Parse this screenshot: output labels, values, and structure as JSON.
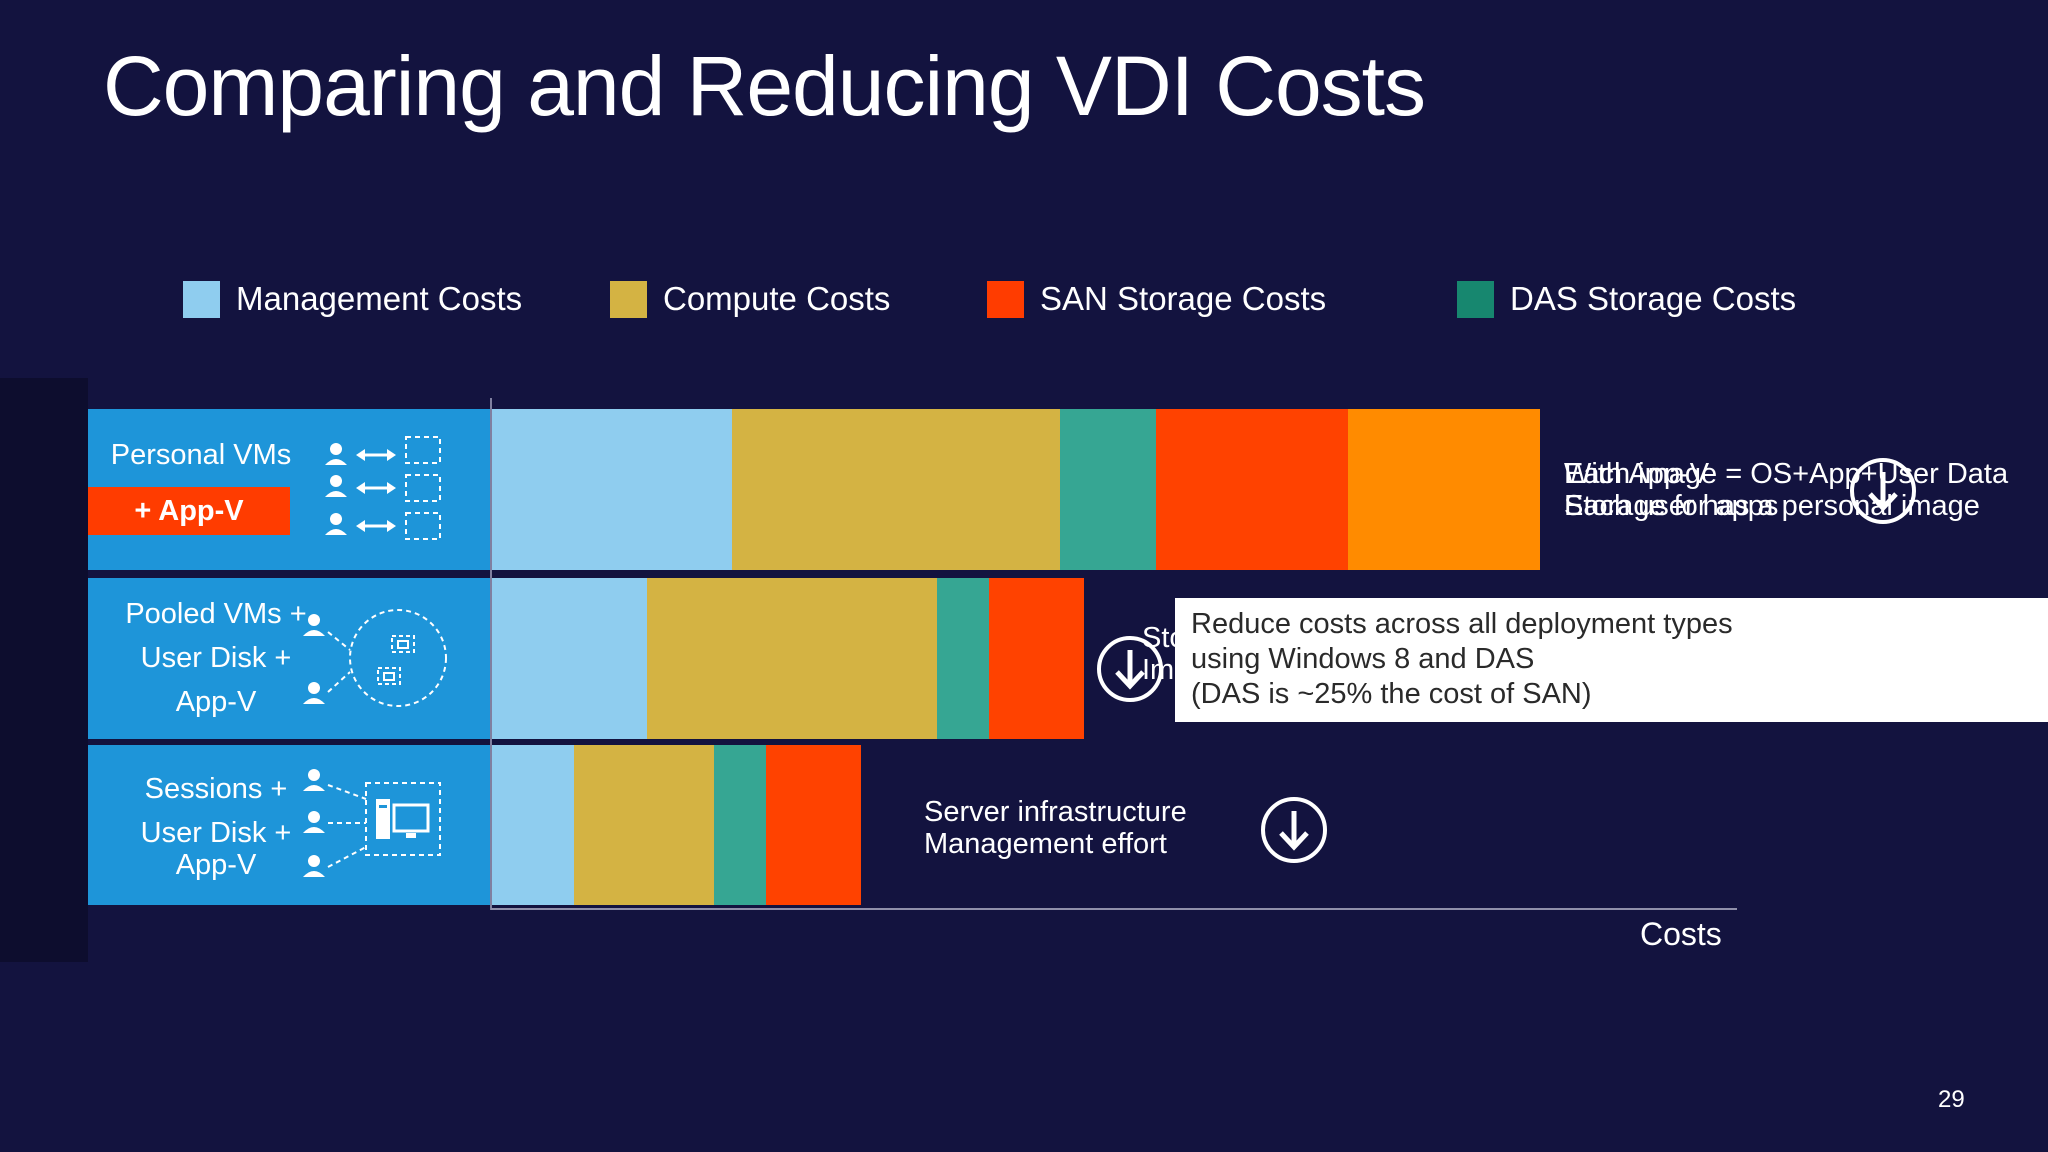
{
  "slide": {
    "title": "Comparing and Reducing VDI Costs",
    "page_number": "29"
  },
  "colors": {
    "background": "#13133f",
    "row_label": "#1e95d9",
    "appv_tag": "#ff3c00",
    "management": "#8fcdef",
    "compute": "#d4b343",
    "das": "#36a693",
    "san": "#ff4200",
    "extra": "#ff8b00"
  },
  "legend": [
    {
      "label": "Management Costs",
      "color": "#8fcdef"
    },
    {
      "label": "Compute Costs",
      "color": "#d4b343"
    },
    {
      "label": "SAN Storage Costs",
      "color": "#ff3c00"
    },
    {
      "label": "DAS Storage Costs",
      "color": "#17876f"
    }
  ],
  "rows": [
    {
      "lines": [
        "Personal VMs"
      ],
      "tag": "+ App-V"
    },
    {
      "lines": [
        "Pooled VMs +",
        "User Disk +",
        "App-V"
      ]
    },
    {
      "lines": [
        "Sessions +",
        "User Disk +",
        "App-V"
      ]
    }
  ],
  "chart_data": {
    "type": "bar",
    "orientation": "horizontal",
    "stacked": true,
    "xlabel": "Costs",
    "categories": [
      "Personal VMs + App-V",
      "Pooled VMs + User Disk + App-V",
      "Sessions + User Disk + App-V"
    ],
    "series": [
      {
        "name": "Management Costs",
        "color": "#8fcdef",
        "values": [
          240,
          155,
          82
        ]
      },
      {
        "name": "Compute Costs",
        "color": "#d4b343",
        "values": [
          328,
          290,
          140
        ]
      },
      {
        "name": "DAS Storage Costs",
        "color": "#36a693",
        "values": [
          96,
          52,
          52
        ]
      },
      {
        "name": "SAN Storage Costs",
        "color": "#ff4200",
        "values": [
          192,
          95,
          95
        ]
      },
      {
        "name": "",
        "color": "#ff8b00",
        "values": [
          192,
          0,
          0
        ]
      }
    ],
    "xlim": [
      0,
      1244
    ]
  },
  "annotations": {
    "row1_layer_a": [
      "Each image = OS+App+User Data",
      "Each user has a personal image"
    ],
    "row1_layer_b": [
      "With App-V",
      "Storage for apps"
    ],
    "row2_partial": [
      "Sto",
      "Im"
    ],
    "row3": [
      "Server infrastructure",
      "Management effort"
    ],
    "callout": [
      "Reduce costs across all deployment types",
      "using Windows 8 and DAS",
      "(DAS is ~25% the cost of SAN)"
    ]
  },
  "icons": {
    "down_arrow": "down-arrow-circle-icon",
    "user": "user-icon",
    "exchange": "double-arrow-icon",
    "vm": "virtual-machine-icon",
    "server": "server-icon"
  }
}
